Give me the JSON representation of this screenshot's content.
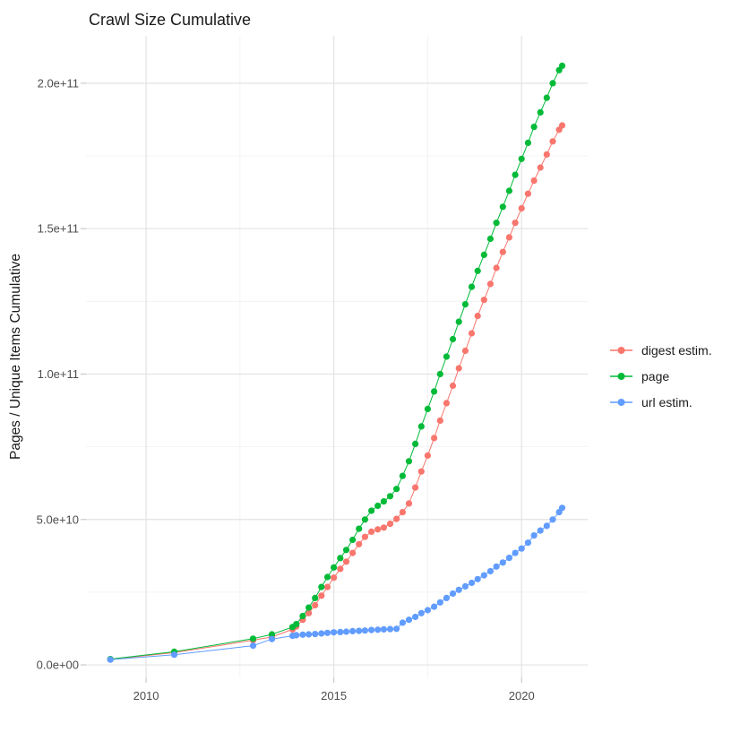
{
  "chart_data": {
    "type": "scatter",
    "title": "Crawl Size Cumulative",
    "xlabel": "",
    "ylabel": "Pages / Unique Items Cumulative",
    "legend_position": "right",
    "grid": true,
    "x_axis": {
      "range": [
        2008.4,
        2021.76
      ],
      "ticks": [
        {
          "label": "2010",
          "value": 2010
        },
        {
          "label": "2015",
          "value": 2015
        },
        {
          "label": "2020",
          "value": 2020
        }
      ],
      "minor": [
        2012.5,
        2017.5
      ]
    },
    "y_axis": {
      "range": [
        -4300000000.0,
        216300000000.0
      ],
      "ticks": [
        {
          "label": "0.0e+00",
          "value": 0
        },
        {
          "label": "5.0e+10",
          "value": 50000000000.0
        },
        {
          "label": "1.0e+11",
          "value": 100000000000.0
        },
        {
          "label": "1.5e+11",
          "value": 150000000000.0
        },
        {
          "label": "2.0e+11",
          "value": 200000000000.0
        }
      ],
      "minor": [
        25000000000.0,
        75000000000.0,
        125000000000.0,
        175000000000.0
      ]
    },
    "series": [
      {
        "name": "digest estim.",
        "color": "#F8766D",
        "points": [
          [
            2009.05,
            1900000000.0
          ],
          [
            2010.75,
            4200000000.0
          ],
          [
            2012.85,
            8500000000.0
          ],
          [
            2013.35,
            9600000000.0
          ],
          [
            2013.9,
            12200000000.0
          ],
          [
            2014.0,
            13200000000.0
          ],
          [
            2014.17,
            15500000000.0
          ],
          [
            2014.33,
            17800000000.0
          ],
          [
            2014.5,
            20500000000.0
          ],
          [
            2014.67,
            23800000000.0
          ],
          [
            2014.83,
            26800000000.0
          ],
          [
            2015.0,
            30000000000.0
          ],
          [
            2015.17,
            33000000000.0
          ],
          [
            2015.33,
            35500000000.0
          ],
          [
            2015.5,
            38500000000.0
          ],
          [
            2015.67,
            41500000000.0
          ],
          [
            2015.83,
            44000000000.0
          ],
          [
            2016.0,
            45800000000.0
          ],
          [
            2016.17,
            46600000000.0
          ],
          [
            2016.33,
            47200000000.0
          ],
          [
            2016.5,
            48500000000.0
          ],
          [
            2016.67,
            50200000000.0
          ],
          [
            2016.83,
            52500000000.0
          ],
          [
            2017.0,
            55500000000.0
          ],
          [
            2017.17,
            61000000000.0
          ],
          [
            2017.33,
            66500000000.0
          ],
          [
            2017.5,
            72000000000.0
          ],
          [
            2017.67,
            78000000000.0
          ],
          [
            2017.83,
            84000000000.0
          ],
          [
            2018.0,
            90000000000.0
          ],
          [
            2018.17,
            96000000000.0
          ],
          [
            2018.33,
            102000000000.0
          ],
          [
            2018.5,
            108000000000.0
          ],
          [
            2018.67,
            114000000000.0
          ],
          [
            2018.83,
            120000000000.0
          ],
          [
            2019.0,
            125500000000.0
          ],
          [
            2019.17,
            131000000000.0
          ],
          [
            2019.33,
            136500000000.0
          ],
          [
            2019.5,
            142000000000.0
          ],
          [
            2019.67,
            147000000000.0
          ],
          [
            2019.83,
            152000000000.0
          ],
          [
            2020.0,
            157000000000.0
          ],
          [
            2020.17,
            162000000000.0
          ],
          [
            2020.33,
            166500000000.0
          ],
          [
            2020.5,
            171000000000.0
          ],
          [
            2020.67,
            175500000000.0
          ],
          [
            2020.83,
            180000000000.0
          ],
          [
            2021.0,
            184000000000.0
          ],
          [
            2021.08,
            185500000000.0
          ]
        ]
      },
      {
        "name": "page",
        "color": "#00BA38",
        "points": [
          [
            2009.05,
            2000000000.0
          ],
          [
            2010.75,
            4500000000.0
          ],
          [
            2012.85,
            9000000000.0
          ],
          [
            2013.35,
            10500000000.0
          ],
          [
            2013.9,
            13000000000.0
          ],
          [
            2014.0,
            14000000000.0
          ],
          [
            2014.17,
            16800000000.0
          ],
          [
            2014.33,
            19700000000.0
          ],
          [
            2014.5,
            23000000000.0
          ],
          [
            2014.67,
            26800000000.0
          ],
          [
            2014.83,
            30200000000.0
          ],
          [
            2015.0,
            33500000000.0
          ],
          [
            2015.17,
            36700000000.0
          ],
          [
            2015.33,
            39500000000.0
          ],
          [
            2015.5,
            43000000000.0
          ],
          [
            2015.67,
            46800000000.0
          ],
          [
            2015.83,
            50000000000.0
          ],
          [
            2016.0,
            53000000000.0
          ],
          [
            2016.17,
            54700000000.0
          ],
          [
            2016.33,
            56200000000.0
          ],
          [
            2016.5,
            58000000000.0
          ],
          [
            2016.67,
            60500000000.0
          ],
          [
            2016.83,
            65000000000.0
          ],
          [
            2017.0,
            70000000000.0
          ],
          [
            2017.17,
            76000000000.0
          ],
          [
            2017.33,
            82000000000.0
          ],
          [
            2017.5,
            88000000000.0
          ],
          [
            2017.67,
            94000000000.0
          ],
          [
            2017.83,
            100000000000.0
          ],
          [
            2018.0,
            106000000000.0
          ],
          [
            2018.17,
            112000000000.0
          ],
          [
            2018.33,
            118000000000.0
          ],
          [
            2018.5,
            124000000000.0
          ],
          [
            2018.67,
            130000000000.0
          ],
          [
            2018.83,
            135500000000.0
          ],
          [
            2019.0,
            141000000000.0
          ],
          [
            2019.17,
            146500000000.0
          ],
          [
            2019.33,
            152000000000.0
          ],
          [
            2019.5,
            157500000000.0
          ],
          [
            2019.67,
            163000000000.0
          ],
          [
            2019.83,
            168500000000.0
          ],
          [
            2020.0,
            174000000000.0
          ],
          [
            2020.17,
            179500000000.0
          ],
          [
            2020.33,
            185000000000.0
          ],
          [
            2020.5,
            190000000000.0
          ],
          [
            2020.67,
            195000000000.0
          ],
          [
            2020.83,
            200000000000.0
          ],
          [
            2021.0,
            204500000000.0
          ],
          [
            2021.08,
            206000000000.0
          ]
        ]
      },
      {
        "name": "url estim.",
        "color": "#619CFF",
        "points": [
          [
            2009.05,
            1800000000.0
          ],
          [
            2010.75,
            3500000000.0
          ],
          [
            2012.85,
            6600000000.0
          ],
          [
            2013.35,
            8900000000.0
          ],
          [
            2013.9,
            10000000000.0
          ],
          [
            2014.0,
            10200000000.0
          ],
          [
            2014.17,
            10400000000.0
          ],
          [
            2014.33,
            10500000000.0
          ],
          [
            2014.5,
            10600000000.0
          ],
          [
            2014.67,
            10800000000.0
          ],
          [
            2014.83,
            11000000000.0
          ],
          [
            2015.0,
            11200000000.0
          ],
          [
            2015.17,
            11300000000.0
          ],
          [
            2015.33,
            11400000000.0
          ],
          [
            2015.5,
            11600000000.0
          ],
          [
            2015.67,
            11700000000.0
          ],
          [
            2015.83,
            11800000000.0
          ],
          [
            2016.0,
            12000000000.0
          ],
          [
            2016.17,
            12100000000.0
          ],
          [
            2016.33,
            12200000000.0
          ],
          [
            2016.5,
            12300000000.0
          ],
          [
            2016.67,
            12400000000.0
          ],
          [
            2016.83,
            14500000000.0
          ],
          [
            2017.0,
            15500000000.0
          ],
          [
            2017.17,
            16500000000.0
          ],
          [
            2017.33,
            17800000000.0
          ],
          [
            2017.5,
            18800000000.0
          ],
          [
            2017.67,
            20000000000.0
          ],
          [
            2017.83,
            21500000000.0
          ],
          [
            2018.0,
            23000000000.0
          ],
          [
            2018.17,
            24500000000.0
          ],
          [
            2018.33,
            25800000000.0
          ],
          [
            2018.5,
            27000000000.0
          ],
          [
            2018.67,
            28200000000.0
          ],
          [
            2018.83,
            29500000000.0
          ],
          [
            2019.0,
            30800000000.0
          ],
          [
            2019.17,
            32200000000.0
          ],
          [
            2019.33,
            33800000000.0
          ],
          [
            2019.5,
            35200000000.0
          ],
          [
            2019.67,
            36800000000.0
          ],
          [
            2019.83,
            38500000000.0
          ],
          [
            2020.0,
            40000000000.0
          ],
          [
            2020.17,
            42000000000.0
          ],
          [
            2020.33,
            44500000000.0
          ],
          [
            2020.5,
            46200000000.0
          ],
          [
            2020.67,
            47800000000.0
          ],
          [
            2020.83,
            50000000000.0
          ],
          [
            2021.0,
            52500000000.0
          ],
          [
            2021.08,
            54000000000.0
          ]
        ]
      }
    ],
    "style": {
      "grid_major_color": "#e3e3e3",
      "grid_minor_color": "#f0f0f0",
      "tick_color": "#c9c9c9",
      "background": "#ffffff"
    }
  }
}
